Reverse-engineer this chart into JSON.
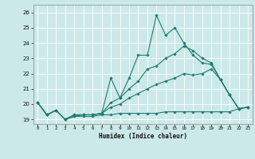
{
  "xlabel": "Humidex (Indice chaleur)",
  "xlim": [
    -0.5,
    23.5
  ],
  "ylim": [
    18.7,
    26.5
  ],
  "yticks": [
    19,
    20,
    21,
    22,
    23,
    24,
    25,
    26
  ],
  "xticks": [
    0,
    1,
    2,
    3,
    4,
    5,
    6,
    7,
    8,
    9,
    10,
    11,
    12,
    13,
    14,
    15,
    16,
    17,
    18,
    19,
    20,
    21,
    22,
    23
  ],
  "bg_color": "#cce9ea",
  "grid_color": "#ffffff",
  "line_color": "#1e7b6e",
  "series1": [
    20.1,
    19.3,
    19.6,
    19.0,
    19.3,
    19.3,
    19.3,
    19.4,
    21.7,
    20.4,
    21.7,
    23.2,
    23.2,
    25.8,
    24.5,
    25.0,
    24.0,
    23.2,
    22.7,
    22.6,
    21.6,
    20.6,
    19.7,
    19.8
  ],
  "series2": [
    20.1,
    19.3,
    19.6,
    19.0,
    19.3,
    19.3,
    19.3,
    19.4,
    20.1,
    20.4,
    21.0,
    21.5,
    22.3,
    22.5,
    23.0,
    23.3,
    23.8,
    23.5,
    23.0,
    22.7,
    21.6,
    20.6,
    19.7,
    19.8
  ],
  "series3": [
    20.1,
    19.3,
    19.6,
    19.0,
    19.2,
    19.3,
    19.3,
    19.4,
    19.8,
    20.0,
    20.4,
    20.7,
    21.0,
    21.3,
    21.5,
    21.7,
    22.0,
    21.9,
    22.0,
    22.3,
    21.6,
    20.6,
    19.7,
    19.8
  ],
  "series4": [
    20.1,
    19.3,
    19.6,
    19.0,
    19.2,
    19.2,
    19.2,
    19.3,
    19.3,
    19.4,
    19.4,
    19.4,
    19.4,
    19.4,
    19.5,
    19.5,
    19.5,
    19.5,
    19.5,
    19.5,
    19.5,
    19.5,
    19.7,
    19.8
  ]
}
